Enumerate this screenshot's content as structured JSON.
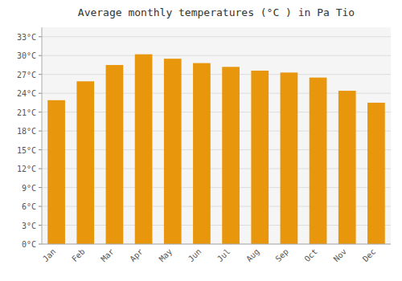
{
  "chart_data": {
    "type": "bar",
    "title": "Average monthly temperatures (°C ) in Pa Tio",
    "categories": [
      "Jan",
      "Feb",
      "Mar",
      "Apr",
      "May",
      "Jun",
      "Jul",
      "Aug",
      "Sep",
      "Oct",
      "Nov",
      "Dec"
    ],
    "values": [
      22.9,
      25.9,
      28.5,
      30.2,
      29.5,
      28.8,
      28.2,
      27.6,
      27.3,
      26.5,
      24.4,
      22.5
    ],
    "color": "#E8960C",
    "ylim": [
      0,
      34.5
    ],
    "yticks": [
      {
        "value": 0,
        "label": "0°C"
      },
      {
        "value": 3,
        "label": "3°C"
      },
      {
        "value": 6,
        "label": "6°C"
      },
      {
        "value": 9,
        "label": "9°C"
      },
      {
        "value": 12,
        "label": "12°C"
      },
      {
        "value": 15,
        "label": "15°C"
      },
      {
        "value": 18,
        "label": "18°C"
      },
      {
        "value": 21,
        "label": "21°C"
      },
      {
        "value": 24,
        "label": "24°C"
      },
      {
        "value": 27,
        "label": "27°C"
      },
      {
        "value": 30,
        "label": "30°C"
      },
      {
        "value": 33,
        "label": "33°C"
      }
    ],
    "grid": true
  }
}
